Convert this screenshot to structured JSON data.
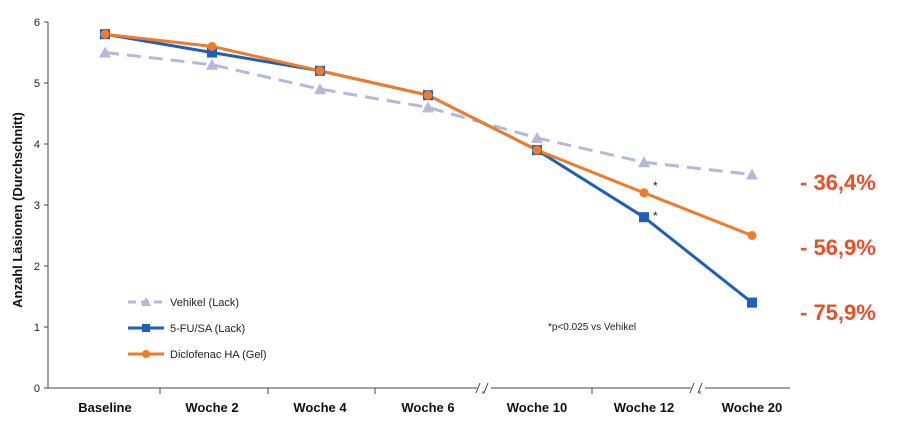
{
  "chart_data": {
    "type": "line",
    "title": "",
    "xlabel": "",
    "ylabel": "Anzahl Läsionen (Durchschnitt)",
    "categories": [
      "Baseline",
      "Woche 2",
      "Woche 4",
      "Woche 6",
      "Woche 10",
      "Woche 12",
      "Woche 20"
    ],
    "ylim": [
      0,
      6
    ],
    "yticks": [
      "0",
      "1",
      "2",
      "3",
      "4",
      "5",
      "6"
    ],
    "grid": false,
    "legend_position": "bottom-left",
    "series": [
      {
        "name": "Vehikel (Lack)",
        "color": "#b4b8dc",
        "marker": "triangle",
        "dash": true,
        "values": [
          5.5,
          5.3,
          4.9,
          4.6,
          4.1,
          3.7,
          3.5
        ]
      },
      {
        "name": "5-FU/SA (Lack)",
        "color": "#1f5fb5",
        "marker": "square",
        "dash": false,
        "values": [
          5.8,
          5.5,
          5.2,
          4.8,
          3.9,
          2.8,
          1.4
        ]
      },
      {
        "name": "Diclofenac HA (Gel)",
        "color": "#f07b2b",
        "marker": "circle",
        "dash": false,
        "values": [
          5.8,
          5.6,
          5.2,
          4.8,
          3.9,
          3.2,
          2.5
        ]
      }
    ],
    "annotations": {
      "significance_note": "*p<0.025 vs Vehikel",
      "star": "*",
      "reductions": [
        "- 36,4%",
        "- 56,9%",
        "- 75,9%"
      ]
    }
  }
}
